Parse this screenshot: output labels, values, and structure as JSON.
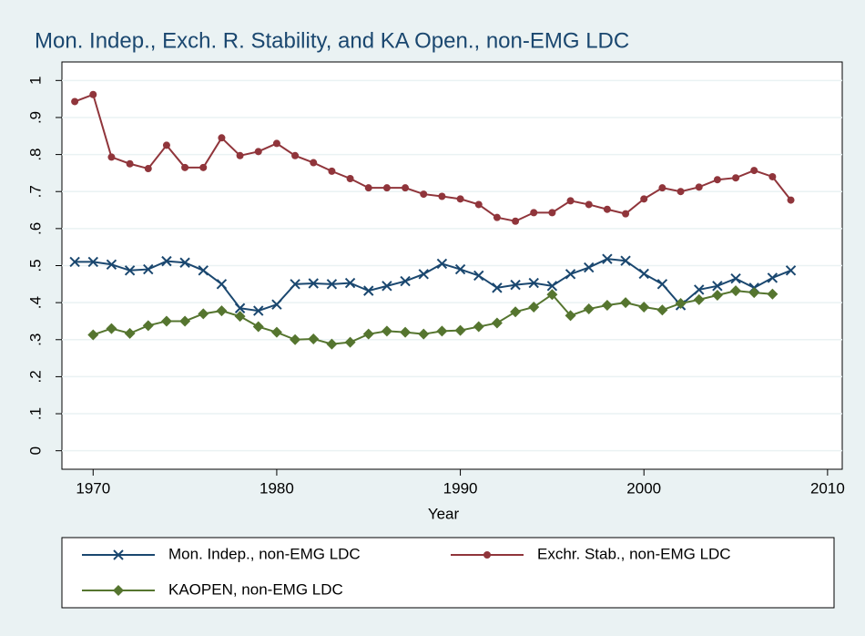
{
  "chart_data": {
    "type": "line",
    "title": "Mon. Indep., Exch. R. Stability, and KA Open., non-EMG LDC",
    "x_label": "Year",
    "x": [
      1969,
      1970,
      1971,
      1972,
      1973,
      1974,
      1975,
      1976,
      1977,
      1978,
      1979,
      1980,
      1981,
      1982,
      1983,
      1984,
      1985,
      1986,
      1987,
      1988,
      1989,
      1990,
      1991,
      1992,
      1993,
      1994,
      1995,
      1996,
      1997,
      1998,
      1999,
      2000,
      2001,
      2002,
      2003,
      2004,
      2005,
      2006,
      2007,
      2008
    ],
    "series": [
      {
        "name": "Mon. Indep., non-EMG LDC",
        "color": "#1a476f",
        "marker": "x",
        "values": [
          0.51,
          0.51,
          0.503,
          0.487,
          0.49,
          0.512,
          0.508,
          0.487,
          0.45,
          0.385,
          0.378,
          0.395,
          0.45,
          0.452,
          0.45,
          0.453,
          0.432,
          0.445,
          0.458,
          0.477,
          0.505,
          0.49,
          0.473,
          0.44,
          0.448,
          0.453,
          0.445,
          0.477,
          0.495,
          0.518,
          0.513,
          0.478,
          0.45,
          0.393,
          0.435,
          0.445,
          0.465,
          0.44,
          0.467,
          0.487
        ]
      },
      {
        "name": "Exchr. Stab., non-EMG LDC",
        "color": "#90353b",
        "marker": "circle",
        "values": [
          0.943,
          0.962,
          0.793,
          0.775,
          0.762,
          0.825,
          0.765,
          0.765,
          0.845,
          0.797,
          0.808,
          0.83,
          0.797,
          0.778,
          0.755,
          0.735,
          0.71,
          0.71,
          0.71,
          0.693,
          0.687,
          0.68,
          0.665,
          0.63,
          0.62,
          0.643,
          0.643,
          0.675,
          0.665,
          0.652,
          0.64,
          0.68,
          0.71,
          0.7,
          0.712,
          0.732,
          0.737,
          0.757,
          0.74,
          0.677
        ]
      },
      {
        "name": "KAOPEN, non-EMG LDC",
        "color": "#55752f",
        "marker": "diamond",
        "values": [
          null,
          0.313,
          0.33,
          0.317,
          0.338,
          0.35,
          0.35,
          0.37,
          0.378,
          0.363,
          0.335,
          0.32,
          0.3,
          0.302,
          0.288,
          0.293,
          0.315,
          0.323,
          0.32,
          0.315,
          0.323,
          0.325,
          0.335,
          0.345,
          0.375,
          0.388,
          0.422,
          0.365,
          0.383,
          0.393,
          0.4,
          0.388,
          0.38,
          0.398,
          0.408,
          0.42,
          0.432,
          0.427,
          0.423,
          null
        ]
      }
    ],
    "xlim": [
      1968.3,
      2010.8
    ],
    "xticks": [
      1970,
      1980,
      1990,
      2000,
      2010
    ],
    "ylim": [
      -0.05,
      1.05
    ],
    "yticks": [
      0,
      {
        "value": 0.1,
        "label": ".1"
      },
      {
        "value": 0.2,
        "label": ".2"
      },
      {
        "value": 0.3,
        "label": ".3"
      },
      {
        "value": 0.4,
        "label": ".4"
      },
      {
        "value": 0.5,
        "label": ".5"
      },
      {
        "value": 0.6,
        "label": ".6"
      },
      {
        "value": 0.7,
        "label": ".7"
      },
      {
        "value": 0.8,
        "label": ".8"
      },
      {
        "value": 0.9,
        "label": ".9"
      },
      1
    ],
    "grid": true
  }
}
